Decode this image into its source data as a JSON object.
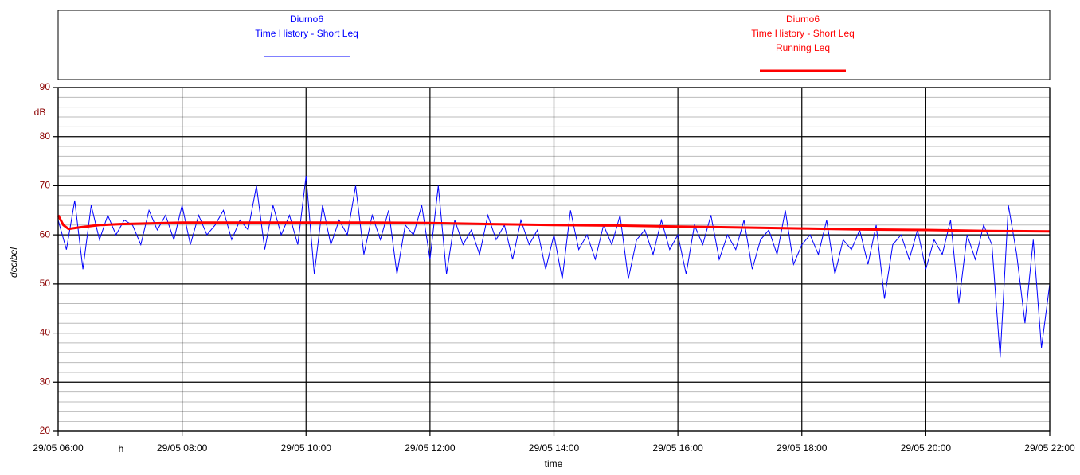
{
  "chart_data": {
    "type": "line",
    "ylabel": "decibel",
    "y_unit": "dB",
    "xlabel": "time",
    "x_unit": "h",
    "xlim": [
      360,
      1320
    ],
    "xticks": [
      {
        "value": 360,
        "label": "29/05 06:00"
      },
      {
        "value": 480,
        "label": "29/05 08:00"
      },
      {
        "value": 600,
        "label": "29/05 10:00"
      },
      {
        "value": 720,
        "label": "29/05 12:00"
      },
      {
        "value": 840,
        "label": "29/05 14:00"
      },
      {
        "value": 960,
        "label": "29/05 16:00"
      },
      {
        "value": 1080,
        "label": "29/05 18:00"
      },
      {
        "value": 1200,
        "label": "29/05 20:00"
      },
      {
        "value": 1320,
        "label": "29/05 22:00"
      }
    ],
    "ylim": [
      20,
      90
    ],
    "yticks": [
      20,
      30,
      40,
      50,
      60,
      70,
      80,
      90
    ],
    "y_minor_ticks": [
      22,
      24,
      26,
      28,
      32,
      34,
      36,
      38,
      42,
      44,
      46,
      48,
      52,
      54,
      56,
      58,
      62,
      64,
      66,
      68,
      72,
      74,
      76,
      78,
      82,
      84,
      86,
      88
    ],
    "grid": true,
    "series": [
      {
        "name": [
          "Diurno6",
          "Time History - Short Leq"
        ],
        "color": "#0000ff",
        "x": [
          360,
          368,
          376,
          384,
          392,
          400,
          408,
          416,
          424,
          432,
          440,
          448,
          456,
          464,
          472,
          480,
          488,
          496,
          504,
          512,
          520,
          528,
          536,
          544,
          552,
          560,
          568,
          576,
          584,
          592,
          600,
          608,
          616,
          624,
          632,
          640,
          648,
          656,
          664,
          672,
          680,
          688,
          696,
          704,
          712,
          720,
          728,
          736,
          744,
          752,
          760,
          768,
          776,
          784,
          792,
          800,
          808,
          816,
          824,
          832,
          840,
          848,
          856,
          864,
          872,
          880,
          888,
          896,
          904,
          912,
          920,
          928,
          936,
          944,
          952,
          960,
          968,
          976,
          984,
          992,
          1000,
          1008,
          1016,
          1024,
          1032,
          1040,
          1048,
          1056,
          1064,
          1072,
          1080,
          1088,
          1096,
          1104,
          1112,
          1120,
          1128,
          1136,
          1144,
          1152,
          1160,
          1168,
          1176,
          1184,
          1192,
          1200,
          1208,
          1216,
          1224,
          1232,
          1240,
          1248,
          1256,
          1264,
          1272,
          1280,
          1288,
          1296,
          1304,
          1312,
          1320
        ],
        "values": [
          63,
          57,
          67,
          53,
          66,
          59,
          64,
          60,
          63,
          62,
          58,
          65,
          61,
          64,
          59,
          66,
          58,
          64,
          60,
          62,
          65,
          59,
          63,
          61,
          70,
          57,
          66,
          60,
          64,
          58,
          72,
          52,
          66,
          58,
          63,
          60,
          70,
          56,
          64,
          59,
          65,
          52,
          62,
          60,
          66,
          55,
          70,
          52,
          63,
          58,
          61,
          56,
          64,
          59,
          62,
          55,
          63,
          58,
          61,
          53,
          60,
          51,
          65,
          57,
          60,
          55,
          62,
          58,
          64,
          51,
          59,
          61,
          56,
          63,
          57,
          60,
          52,
          62,
          58,
          64,
          55,
          60,
          57,
          63,
          53,
          59,
          61,
          56,
          65,
          54,
          58,
          60,
          56,
          63,
          52,
          59,
          57,
          61,
          54,
          62,
          47,
          58,
          60,
          55,
          61,
          53,
          59,
          56,
          63,
          46,
          60,
          55,
          62,
          58,
          35,
          66,
          56,
          42,
          59,
          37,
          50
        ]
      },
      {
        "name": [
          "Diurno6",
          "Time History - Short Leq",
          "Running Leq"
        ],
        "color": "#ff0000",
        "x": [
          360,
          365,
          370,
          380,
          400,
          420,
          480,
          540,
          600,
          660,
          720,
          780,
          840,
          900,
          960,
          1020,
          1080,
          1140,
          1200,
          1260,
          1320
        ],
        "values": [
          64,
          62,
          61.2,
          61.5,
          62,
          62.2,
          62.5,
          62.5,
          62.5,
          62.5,
          62.4,
          62.2,
          62,
          61.9,
          61.7,
          61.5,
          61.3,
          61.1,
          61,
          60.8,
          60.7
        ]
      }
    ]
  }
}
